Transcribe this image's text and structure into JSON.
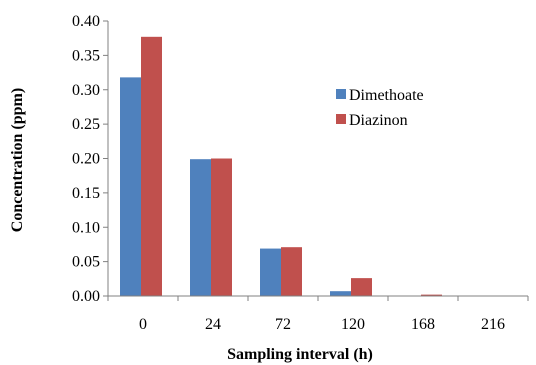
{
  "chart_data": {
    "type": "bar",
    "title": "",
    "xlabel": "Sampling interval (h)",
    "ylabel": "Concentration (ppm)",
    "categories": [
      "0",
      "24",
      "72",
      "120",
      "168",
      "216"
    ],
    "series": [
      {
        "name": "Dimethoate",
        "color": "#4F81BD",
        "values": [
          0.318,
          0.199,
          0.069,
          0.007,
          0.0,
          0.0
        ]
      },
      {
        "name": "Diazinon",
        "color": "#C0504D",
        "values": [
          0.377,
          0.2,
          0.071,
          0.026,
          0.002,
          0.0
        ]
      }
    ],
    "ylim": [
      0,
      0.4
    ],
    "yticks": [
      "0.00",
      "0.05",
      "0.10",
      "0.15",
      "0.20",
      "0.25",
      "0.30",
      "0.35",
      "0.40"
    ],
    "grid": false,
    "legend_position": "right"
  }
}
